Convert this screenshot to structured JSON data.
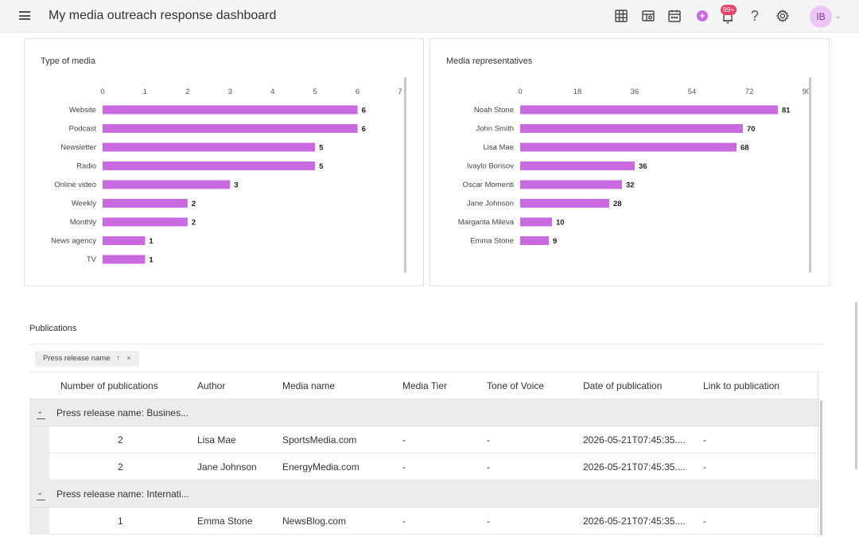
{
  "app": {
    "title": "My media outreach response dashboard",
    "notification_count": "99+",
    "avatar_initials": "IB",
    "accent_color": "#c96ae0",
    "badge_color": "#e8436a",
    "icons": [
      "menu-icon",
      "grid-icon",
      "table-settings-icon",
      "calendar-icon",
      "add-icon",
      "bell-icon",
      "help-icon",
      "gear-icon"
    ]
  },
  "charts": {
    "type_of_media": {
      "title": "Type of media"
    },
    "media_representatives": {
      "title": "Media representatives"
    }
  },
  "chart_data": [
    {
      "type": "bar",
      "orientation": "horizontal",
      "title": "Type of media",
      "categories": [
        "Website",
        "Podcast",
        "Newsletter",
        "Radio",
        "Online video",
        "Weekly",
        "Monthly",
        "News agency",
        "TV"
      ],
      "values": [
        6,
        6,
        5,
        5,
        3,
        2,
        2,
        1,
        1
      ],
      "xticks": [
        "0",
        "1",
        "2",
        "3",
        "4",
        "5",
        "6",
        "7"
      ],
      "xlim": [
        0,
        7
      ],
      "bar_color": "#c96ae0",
      "grid": false,
      "data_labels": true
    },
    {
      "type": "bar",
      "orientation": "horizontal",
      "title": "Media representatives",
      "categories": [
        "Noah Stone",
        "John Smith",
        "Lisa Mae",
        "Ivaylo Borisov",
        "Oscar Momenti",
        "Jane Johnson",
        "Margarita Mileva",
        "Emma Stone"
      ],
      "values": [
        81,
        70,
        68,
        36,
        32,
        28,
        10,
        9
      ],
      "xticks": [
        "0",
        "18",
        "36",
        "54",
        "72",
        "90"
      ],
      "xlim": [
        0,
        90
      ],
      "bar_color": "#c96ae0",
      "grid": false,
      "data_labels": true
    }
  ],
  "publications": {
    "title": "Publications",
    "group_chip": {
      "label": "Press release name",
      "sort_icon": "↑",
      "remove_icon": "×"
    },
    "columns": [
      "Number of publications",
      "Author",
      "Media name",
      "Media Tier",
      "Tone of Voice",
      "Date of publication",
      "Link to publication"
    ],
    "groups": [
      {
        "label": "Press release name: Busines...",
        "rows": [
          {
            "count": "2",
            "author": "Lisa Mae",
            "media": "SportsMedia.com",
            "tier": "-",
            "tone": "-",
            "date": "2026-05-21T07:45:35....",
            "link": "-"
          },
          {
            "count": "2",
            "author": "Jane Johnson",
            "media": "EnergyMedia.com",
            "tier": "-",
            "tone": "-",
            "date": "2026-05-21T07:45:35....",
            "link": "-"
          }
        ]
      },
      {
        "label": "Press release name: Internati...",
        "rows": [
          {
            "count": "1",
            "author": "Emma Stone",
            "media": "NewsBlog.com",
            "tier": "-",
            "tone": "-",
            "date": "2026-05-21T07:45:35....",
            "link": "-"
          }
        ]
      }
    ]
  }
}
